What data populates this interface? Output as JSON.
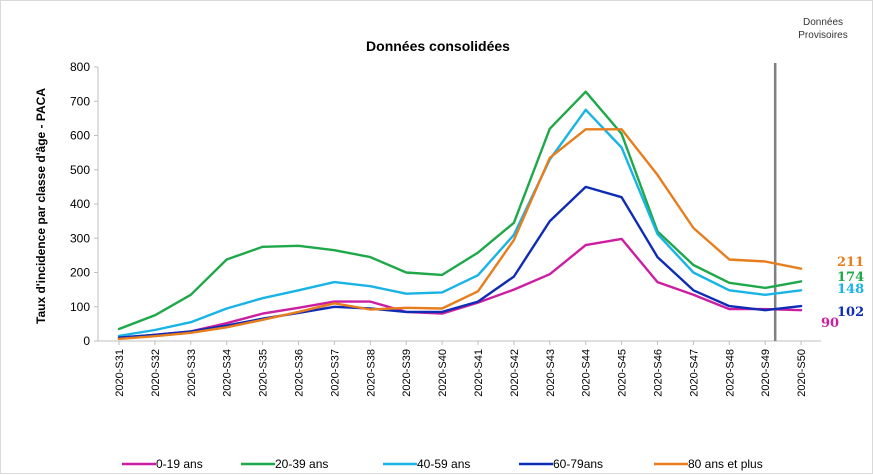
{
  "chart_data": {
    "type": "line",
    "title": "Données consolidées",
    "ylabel": "Taux d'incidence par classe d'âge - PACA",
    "xlabel": "",
    "ylim": [
      0,
      800
    ],
    "yticks": [
      0,
      100,
      200,
      300,
      400,
      500,
      600,
      700,
      800
    ],
    "grid": false,
    "legend_position": "bottom",
    "categories": [
      "2020-S31",
      "2020-S32",
      "2020-S33",
      "2020-S34",
      "2020-S35",
      "2020-S36",
      "2020-S37",
      "2020-S38",
      "2020-S39",
      "2020-S40",
      "2020-S41",
      "2020-S42",
      "2020-S43",
      "2020-S44",
      "2020-S45",
      "2020-S46",
      "2020-S47",
      "2020-S48",
      "2020-S49",
      "2020-S50"
    ],
    "annotation": {
      "text_lines": [
        "Données",
        "Provisoires"
      ],
      "vertical_line_at": "2020-S49"
    },
    "series": [
      {
        "name": "0-19 ans",
        "color": "#cc1ea0",
        "values": [
          8,
          18,
          28,
          52,
          80,
          97,
          115,
          115,
          85,
          80,
          112,
          150,
          195,
          280,
          298,
          172,
          135,
          93,
          93,
          90
        ],
        "end_label": "90"
      },
      {
        "name": "20-39 ans",
        "color": "#1fa84a",
        "values": [
          35,
          75,
          135,
          238,
          275,
          278,
          265,
          245,
          200,
          193,
          258,
          345,
          620,
          728,
          605,
          320,
          222,
          170,
          155,
          174
        ],
        "end_label": "174"
      },
      {
        "name": "40-59 ans",
        "color": "#19b3e6",
        "values": [
          15,
          32,
          55,
          95,
          125,
          148,
          172,
          160,
          138,
          142,
          192,
          310,
          530,
          675,
          565,
          312,
          200,
          148,
          135,
          148
        ],
        "end_label": "148"
      },
      {
        "name": "60-79ans",
        "color": "#0f2cb5",
        "values": [
          10,
          18,
          28,
          45,
          65,
          82,
          100,
          95,
          85,
          85,
          115,
          188,
          350,
          450,
          420,
          245,
          148,
          102,
          90,
          102
        ],
        "end_label": "102"
      },
      {
        "name": "80 ans et plus",
        "color": "#e87d1e",
        "values": [
          6,
          14,
          24,
          40,
          62,
          85,
          110,
          92,
          97,
          95,
          145,
          295,
          535,
          618,
          618,
          485,
          330,
          238,
          232,
          211
        ],
        "end_label": "211"
      }
    ]
  }
}
